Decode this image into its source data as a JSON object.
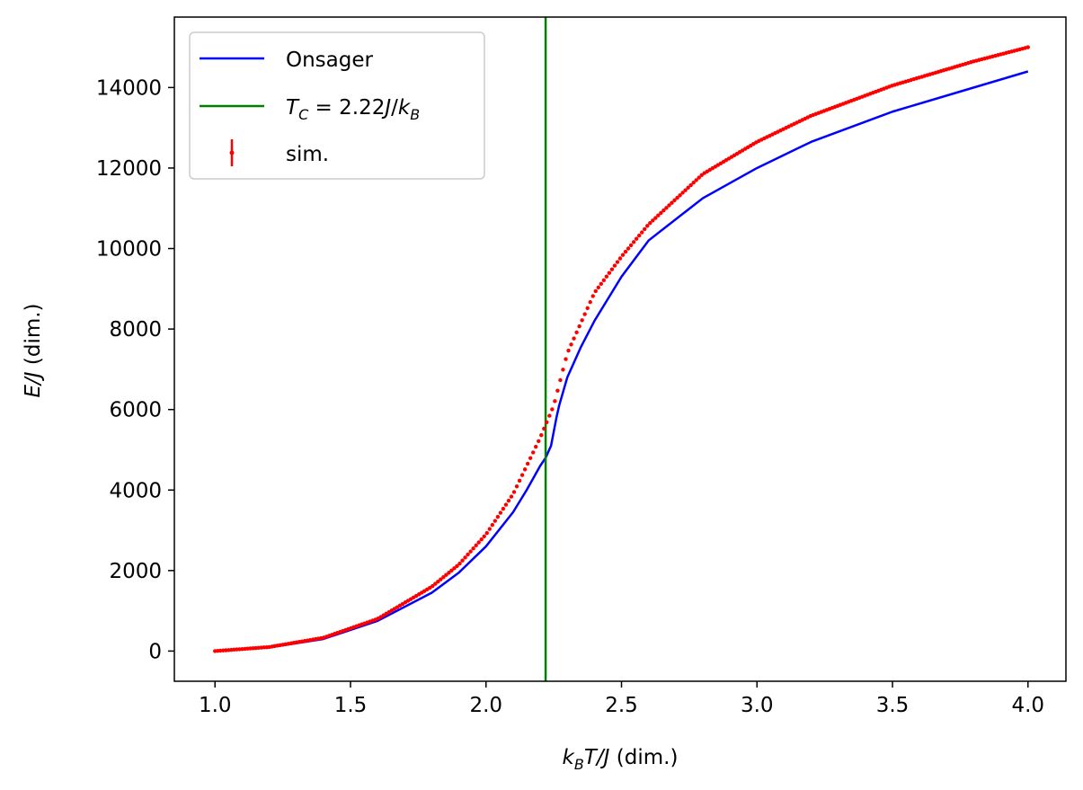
{
  "chart_data": {
    "type": "line",
    "xlabel": "k_BT/J (dim.)",
    "ylabel": "E/J (dim.)",
    "xlim": [
      0.85,
      4.14
    ],
    "ylim": [
      -750,
      15750
    ],
    "x_ticks": [
      1.0,
      1.5,
      2.0,
      2.5,
      3.0,
      3.5,
      4.0
    ],
    "x_tick_labels": [
      "1.0",
      "1.5",
      "2.0",
      "2.5",
      "3.0",
      "3.5",
      "4.0"
    ],
    "y_ticks": [
      0,
      2000,
      4000,
      6000,
      8000,
      10000,
      12000,
      14000
    ],
    "y_tick_labels": [
      "0",
      "2000",
      "4000",
      "6000",
      "8000",
      "10000",
      "12000",
      "14000"
    ],
    "grid": false,
    "legend": {
      "placement": "top-left",
      "entries": [
        "Onsager",
        "T_C = 2.22J/k_B",
        "sim."
      ]
    },
    "series": [
      {
        "name": "Onsager",
        "kind": "line",
        "color": "#0000ff",
        "x": [
          1.0,
          1.2,
          1.4,
          1.6,
          1.8,
          1.9,
          2.0,
          2.1,
          2.15,
          2.2,
          2.22,
          2.24,
          2.25,
          2.26,
          2.27,
          2.3,
          2.35,
          2.4,
          2.5,
          2.6,
          2.8,
          3.0,
          3.2,
          3.5,
          3.8,
          4.0
        ],
        "y": [
          0,
          90,
          300,
          750,
          1450,
          1950,
          2600,
          3450,
          4000,
          4600,
          4800,
          5100,
          5450,
          5800,
          6100,
          6800,
          7550,
          8200,
          9300,
          10200,
          11250,
          12000,
          12650,
          13400,
          14000,
          14400
        ]
      },
      {
        "name": "T_C = 2.22J/k_B",
        "kind": "vline",
        "color": "#008000",
        "x": 2.22
      },
      {
        "name": "sim.",
        "kind": "scatter",
        "color": "#ff0000",
        "x": [
          1.0,
          1.2,
          1.4,
          1.6,
          1.8,
          1.9,
          2.0,
          2.1,
          2.2,
          2.25,
          2.3,
          2.4,
          2.5,
          2.6,
          2.8,
          3.0,
          3.2,
          3.5,
          3.8,
          4.0
        ],
        "y": [
          0,
          100,
          330,
          800,
          1600,
          2150,
          2900,
          3900,
          5300,
          6100,
          7400,
          8900,
          9800,
          10600,
          11850,
          12650,
          13300,
          14050,
          14650,
          15000
        ]
      }
    ]
  }
}
